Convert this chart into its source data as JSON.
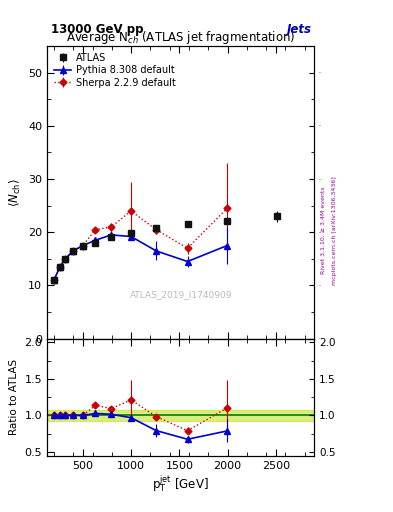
{
  "title_top": "13000 GeV pp",
  "title_right": "Jets",
  "main_title": "Average N$_{ch}$ (ATLAS jet fragmentation)",
  "watermark": "ATLAS_2019_I1740909",
  "right_label_top": "Rivet 3.1.10, ≥ 3.4M events",
  "right_label_bot": "mcplots.cern.ch [arXiv:1306.3436]",
  "xlabel": "p$_{\\mathrm{T}}^{\\mathrm{jet}}$ [GeV]",
  "ylabel_main": "$\\langle N_{\\mathrm{ch}}\\rangle$",
  "ylabel_ratio": "Ratio to ATLAS",
  "atlas_x": [
    200,
    263,
    316,
    400,
    500,
    631,
    794,
    1000,
    1259,
    1585,
    1995,
    2512
  ],
  "atlas_y": [
    11.0,
    13.5,
    15.0,
    16.5,
    17.5,
    18.0,
    19.2,
    19.8,
    20.8,
    21.5,
    22.2,
    23.0
  ],
  "atlas_yerr": [
    0.25,
    0.25,
    0.3,
    0.3,
    0.3,
    0.35,
    0.4,
    0.4,
    0.5,
    0.6,
    0.7,
    1.0
  ],
  "pythia_x": [
    200,
    263,
    316,
    400,
    500,
    631,
    794,
    1000,
    1259,
    1585,
    1995
  ],
  "pythia_y": [
    11.0,
    13.5,
    15.0,
    16.5,
    17.5,
    18.5,
    19.5,
    19.2,
    16.5,
    14.5,
    17.5
  ],
  "pythia_yerr": [
    0.25,
    0.3,
    0.35,
    0.4,
    0.4,
    0.5,
    0.7,
    0.7,
    1.8,
    1.0,
    3.5
  ],
  "sherpa_x": [
    200,
    263,
    316,
    400,
    500,
    631,
    794,
    1000,
    1259,
    1585,
    1995
  ],
  "sherpa_y": [
    11.0,
    13.5,
    15.0,
    16.5,
    17.5,
    20.5,
    21.0,
    24.0,
    20.5,
    17.0,
    24.5
  ],
  "sherpa_yerr": [
    0.25,
    0.3,
    0.35,
    0.4,
    0.4,
    0.5,
    0.7,
    5.5,
    0.8,
    1.0,
    8.5
  ],
  "atlas_color": "#111111",
  "pythia_color": "#0000cc",
  "sherpa_color": "#cc0000",
  "ylim_main": [
    0,
    55
  ],
  "ylim_ratio": [
    0.45,
    2.05
  ],
  "xlim": [
    130,
    2900
  ],
  "band_color": "#bbdd00",
  "band_alpha": 0.5,
  "band_low": 0.93,
  "band_high": 1.07,
  "yticks_main": [
    0,
    10,
    20,
    30,
    40,
    50
  ],
  "yticks_ratio": [
    0.5,
    1.0,
    1.5,
    2.0
  ]
}
